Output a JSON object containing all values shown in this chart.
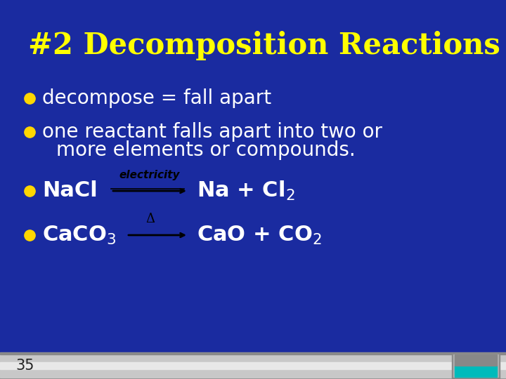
{
  "title": "#2 Decomposition Reactions",
  "title_color": "#FFFF00",
  "title_fontsize": 30,
  "bg_color": "#1a2ba0",
  "bullet_color": "#FFD700",
  "text_color": "#FFFFFF",
  "bullet_fontsize": 20,
  "eq_fontsize": 22,
  "footer_text": "35",
  "arrow_color": "#000000",
  "electricity_label": "electricity",
  "delta_label": "Δ",
  "footer_bar_color": "#c8c8c8",
  "footer_stripe_color": "#e8e8e8",
  "beaker_body_color": "#a0a0a0",
  "beaker_teal_color": "#00bbbb"
}
